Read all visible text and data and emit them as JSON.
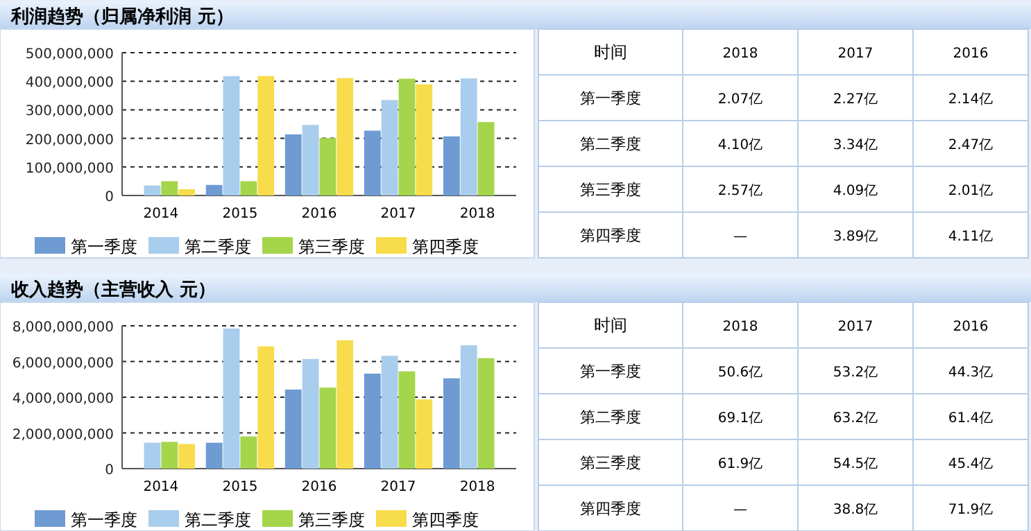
{
  "chart_data": [
    {
      "type": "bar",
      "title": "利润趋势（归属净利润 元）",
      "categories": [
        "2014",
        "2015",
        "2016",
        "2017",
        "2018"
      ],
      "series": [
        {
          "name": "第一季度",
          "color": "#6f9bd3",
          "values": [
            null,
            37000000,
            214000000,
            227000000,
            207000000
          ]
        },
        {
          "name": "第二季度",
          "color": "#a9cdec",
          "values": [
            35000000,
            418000000,
            247000000,
            334000000,
            410000000
          ]
        },
        {
          "name": "第三季度",
          "color": "#a5d54a",
          "values": [
            50000000,
            50000000,
            201000000,
            409000000,
            257000000
          ]
        },
        {
          "name": "第四季度",
          "color": "#f7dc4c",
          "values": [
            22000000,
            418000000,
            411000000,
            389000000,
            null
          ]
        }
      ],
      "ylim": [
        0,
        500000000
      ],
      "yticks": [
        0,
        {
          "value": 100000000,
          "label": "100,000,000"
        },
        {
          "value": 200000000,
          "label": "200,000,000"
        },
        {
          "value": 300000000,
          "label": "300,000,000"
        },
        {
          "value": 400000000,
          "label": "400,000,000"
        },
        {
          "value": 500000000,
          "label": "500,000,000"
        }
      ],
      "grid": "y",
      "legend": "bottom"
    },
    {
      "type": "other",
      "categories": [
        "时间",
        "2018",
        "2017",
        "2016"
      ],
      "y_categories": [
        "第一季度",
        "第二季度",
        "第三季度",
        "第四季度"
      ],
      "cell_labels": [
        [
          "2.07亿",
          "2.27亿",
          "2.14亿"
        ],
        [
          "4.10亿",
          "3.34亿",
          "2.47亿"
        ],
        [
          "2.57亿",
          "4.09亿",
          "2.01亿"
        ],
        [
          "—",
          "3.89亿",
          "4.11亿"
        ]
      ]
    },
    {
      "type": "bar",
      "title": "收入趋势（主营收入 元）",
      "categories": [
        "2014",
        "2015",
        "2016",
        "2017",
        "2018"
      ],
      "series": [
        {
          "name": "第一季度",
          "color": "#6f9bd3",
          "values": [
            null,
            1450000000,
            4430000000,
            5320000000,
            5060000000
          ]
        },
        {
          "name": "第二季度",
          "color": "#a9cdec",
          "values": [
            1450000000,
            7850000000,
            6140000000,
            6320000000,
            6910000000
          ]
        },
        {
          "name": "第三季度",
          "color": "#a5d54a",
          "values": [
            1500000000,
            1800000000,
            4540000000,
            5450000000,
            6190000000
          ]
        },
        {
          "name": "第四季度",
          "color": "#f7dc4c",
          "values": [
            1380000000,
            6850000000,
            7190000000,
            3880000000,
            null
          ]
        }
      ],
      "ylim": [
        0,
        8000000000
      ],
      "yticks": [
        0,
        {
          "value": 2000000000,
          "label": "2,000,000,000"
        },
        {
          "value": 4000000000,
          "label": "4,000,000,000"
        },
        {
          "value": 6000000000,
          "label": "6,000,000,000"
        },
        {
          "value": 8000000000,
          "label": "8,000,000,000"
        }
      ],
      "grid": "y",
      "legend": "bottom"
    },
    {
      "type": "other",
      "categories": [
        "时间",
        "2018",
        "2017",
        "2016"
      ],
      "y_categories": [
        "第一季度",
        "第二季度",
        "第三季度",
        "第四季度"
      ],
      "cell_labels": [
        [
          "50.6亿",
          "53.2亿",
          "44.3亿"
        ],
        [
          "69.1亿",
          "63.2亿",
          "61.4亿"
        ],
        [
          "61.9亿",
          "54.5亿",
          "45.4亿"
        ],
        [
          "—",
          "38.8亿",
          "71.9亿"
        ]
      ]
    }
  ]
}
